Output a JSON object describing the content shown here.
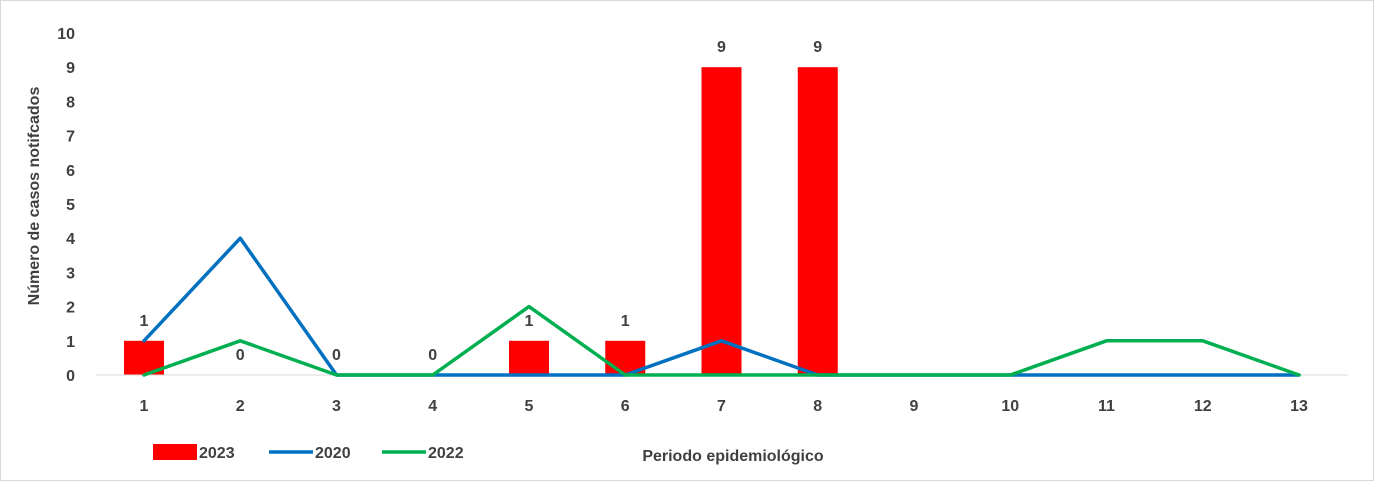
{
  "chart_data": {
    "type": "bar",
    "title": "",
    "xlabel": "Periodo epidemiológico",
    "ylabel": "Número de casos  notifcados",
    "categories": [
      "1",
      "2",
      "3",
      "4",
      "5",
      "6",
      "7",
      "8",
      "9",
      "10",
      "11",
      "12",
      "13"
    ],
    "ylim": [
      0,
      10
    ],
    "yticks": [
      "0",
      "1",
      "2",
      "3",
      "4",
      "5",
      "6",
      "7",
      "8",
      "9",
      "10"
    ],
    "grid": false,
    "legend_position": "bottom-left",
    "series": [
      {
        "name": "2023",
        "type": "bar",
        "color": "#ff0000",
        "values": [
          1,
          0,
          0,
          0,
          1,
          1,
          9,
          9,
          null,
          null,
          null,
          null,
          null
        ],
        "data_labels": [
          {
            "index": 0,
            "text": "1"
          },
          {
            "index": 1,
            "text": "0"
          },
          {
            "index": 2,
            "text": "0"
          },
          {
            "index": 3,
            "text": "0"
          },
          {
            "index": 4,
            "text": "1"
          },
          {
            "index": 5,
            "text": "1"
          },
          {
            "index": 6,
            "text": "9"
          },
          {
            "index": 7,
            "text": "9"
          }
        ]
      },
      {
        "name": "2020",
        "type": "line",
        "color": "#0070c0",
        "values": [
          1,
          4,
          0,
          0,
          0,
          0,
          1,
          0,
          0,
          0,
          0,
          0,
          0
        ]
      },
      {
        "name": "2022",
        "type": "line",
        "color": "#00b050",
        "values": [
          0,
          1,
          0,
          0,
          2,
          0,
          0,
          0,
          0,
          0,
          1,
          1,
          0
        ]
      }
    ]
  }
}
